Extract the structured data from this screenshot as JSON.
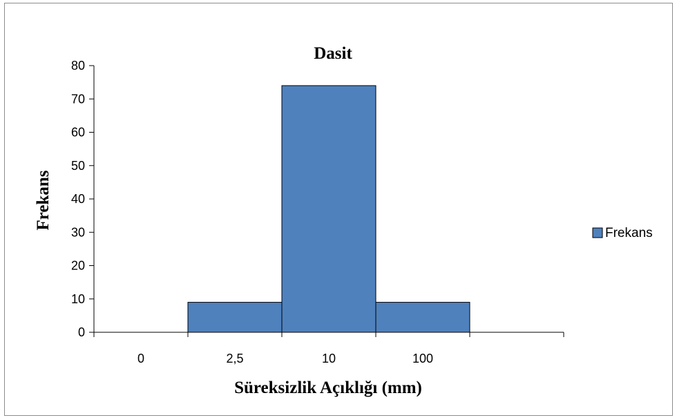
{
  "chart_data": {
    "type": "bar",
    "title": "Dasit",
    "xlabel": "Süreksizlik Açıklığı (mm)",
    "ylabel": "Frekans",
    "categories": [
      "0",
      "2,5",
      "10",
      "100",
      ""
    ],
    "series": [
      {
        "name": "Frekans",
        "values": [
          0,
          9,
          74,
          9,
          0
        ]
      }
    ],
    "ylim": [
      0,
      80
    ],
    "yticks": [
      0,
      10,
      20,
      30,
      40,
      50,
      60,
      70,
      80
    ],
    "bar_gap": 0,
    "grid": false,
    "legend_position": "right",
    "colors": {
      "bar_fill": "#4F81BD",
      "bar_stroke": "#000000",
      "axis": "#000000"
    }
  }
}
